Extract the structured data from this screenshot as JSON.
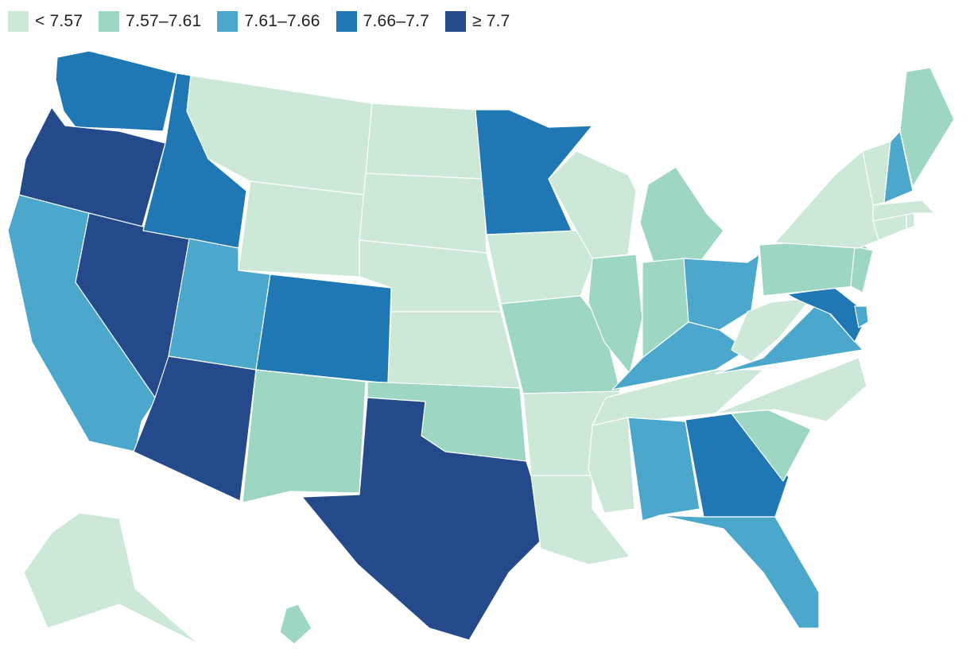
{
  "legend": {
    "items": [
      {
        "label": "< 7.57",
        "color": "#cce8d6"
      },
      {
        "label": "7.57–7.61",
        "color": "#9ed6c4"
      },
      {
        "label": "7.61–7.66",
        "color": "#4ba7cb"
      },
      {
        "label": "7.66–7.7",
        "color": "#1f78b4"
      },
      {
        "label": "≥ 7.7",
        "color": "#244a8c"
      }
    ]
  },
  "chart_data": {
    "type": "choropleth",
    "region": "United States",
    "bins": [
      "< 7.57",
      "7.57–7.61",
      "7.61–7.66",
      "7.66–7.7",
      "≥ 7.7"
    ],
    "states": {
      "WA": 3,
      "OR": 4,
      "CA": 2,
      "NV": 4,
      "ID": 3,
      "MT": 0,
      "WY": 0,
      "UT": 2,
      "AZ": 4,
      "CO": 3,
      "NM": 1,
      "ND": 0,
      "SD": 0,
      "NE": 0,
      "KS": 0,
      "OK": 1,
      "TX": 4,
      "MN": 3,
      "IA": 0,
      "MO": 1,
      "AR": 0,
      "LA": 0,
      "WI": 0,
      "IL": 1,
      "MI": 1,
      "IN": 1,
      "OH": 2,
      "KY": 2,
      "TN": 0,
      "MS": 0,
      "AL": 2,
      "GA": 3,
      "FL": 2,
      "SC": 1,
      "NC": 0,
      "VA": 2,
      "WV": 0,
      "MD": 3,
      "DE": 2,
      "PA": 1,
      "NJ": 1,
      "NY": 0,
      "CT": 0,
      "RI": 0,
      "MA": 0,
      "VT": 0,
      "NH": 2,
      "ME": 1,
      "AK": 0,
      "HI": 1
    }
  }
}
